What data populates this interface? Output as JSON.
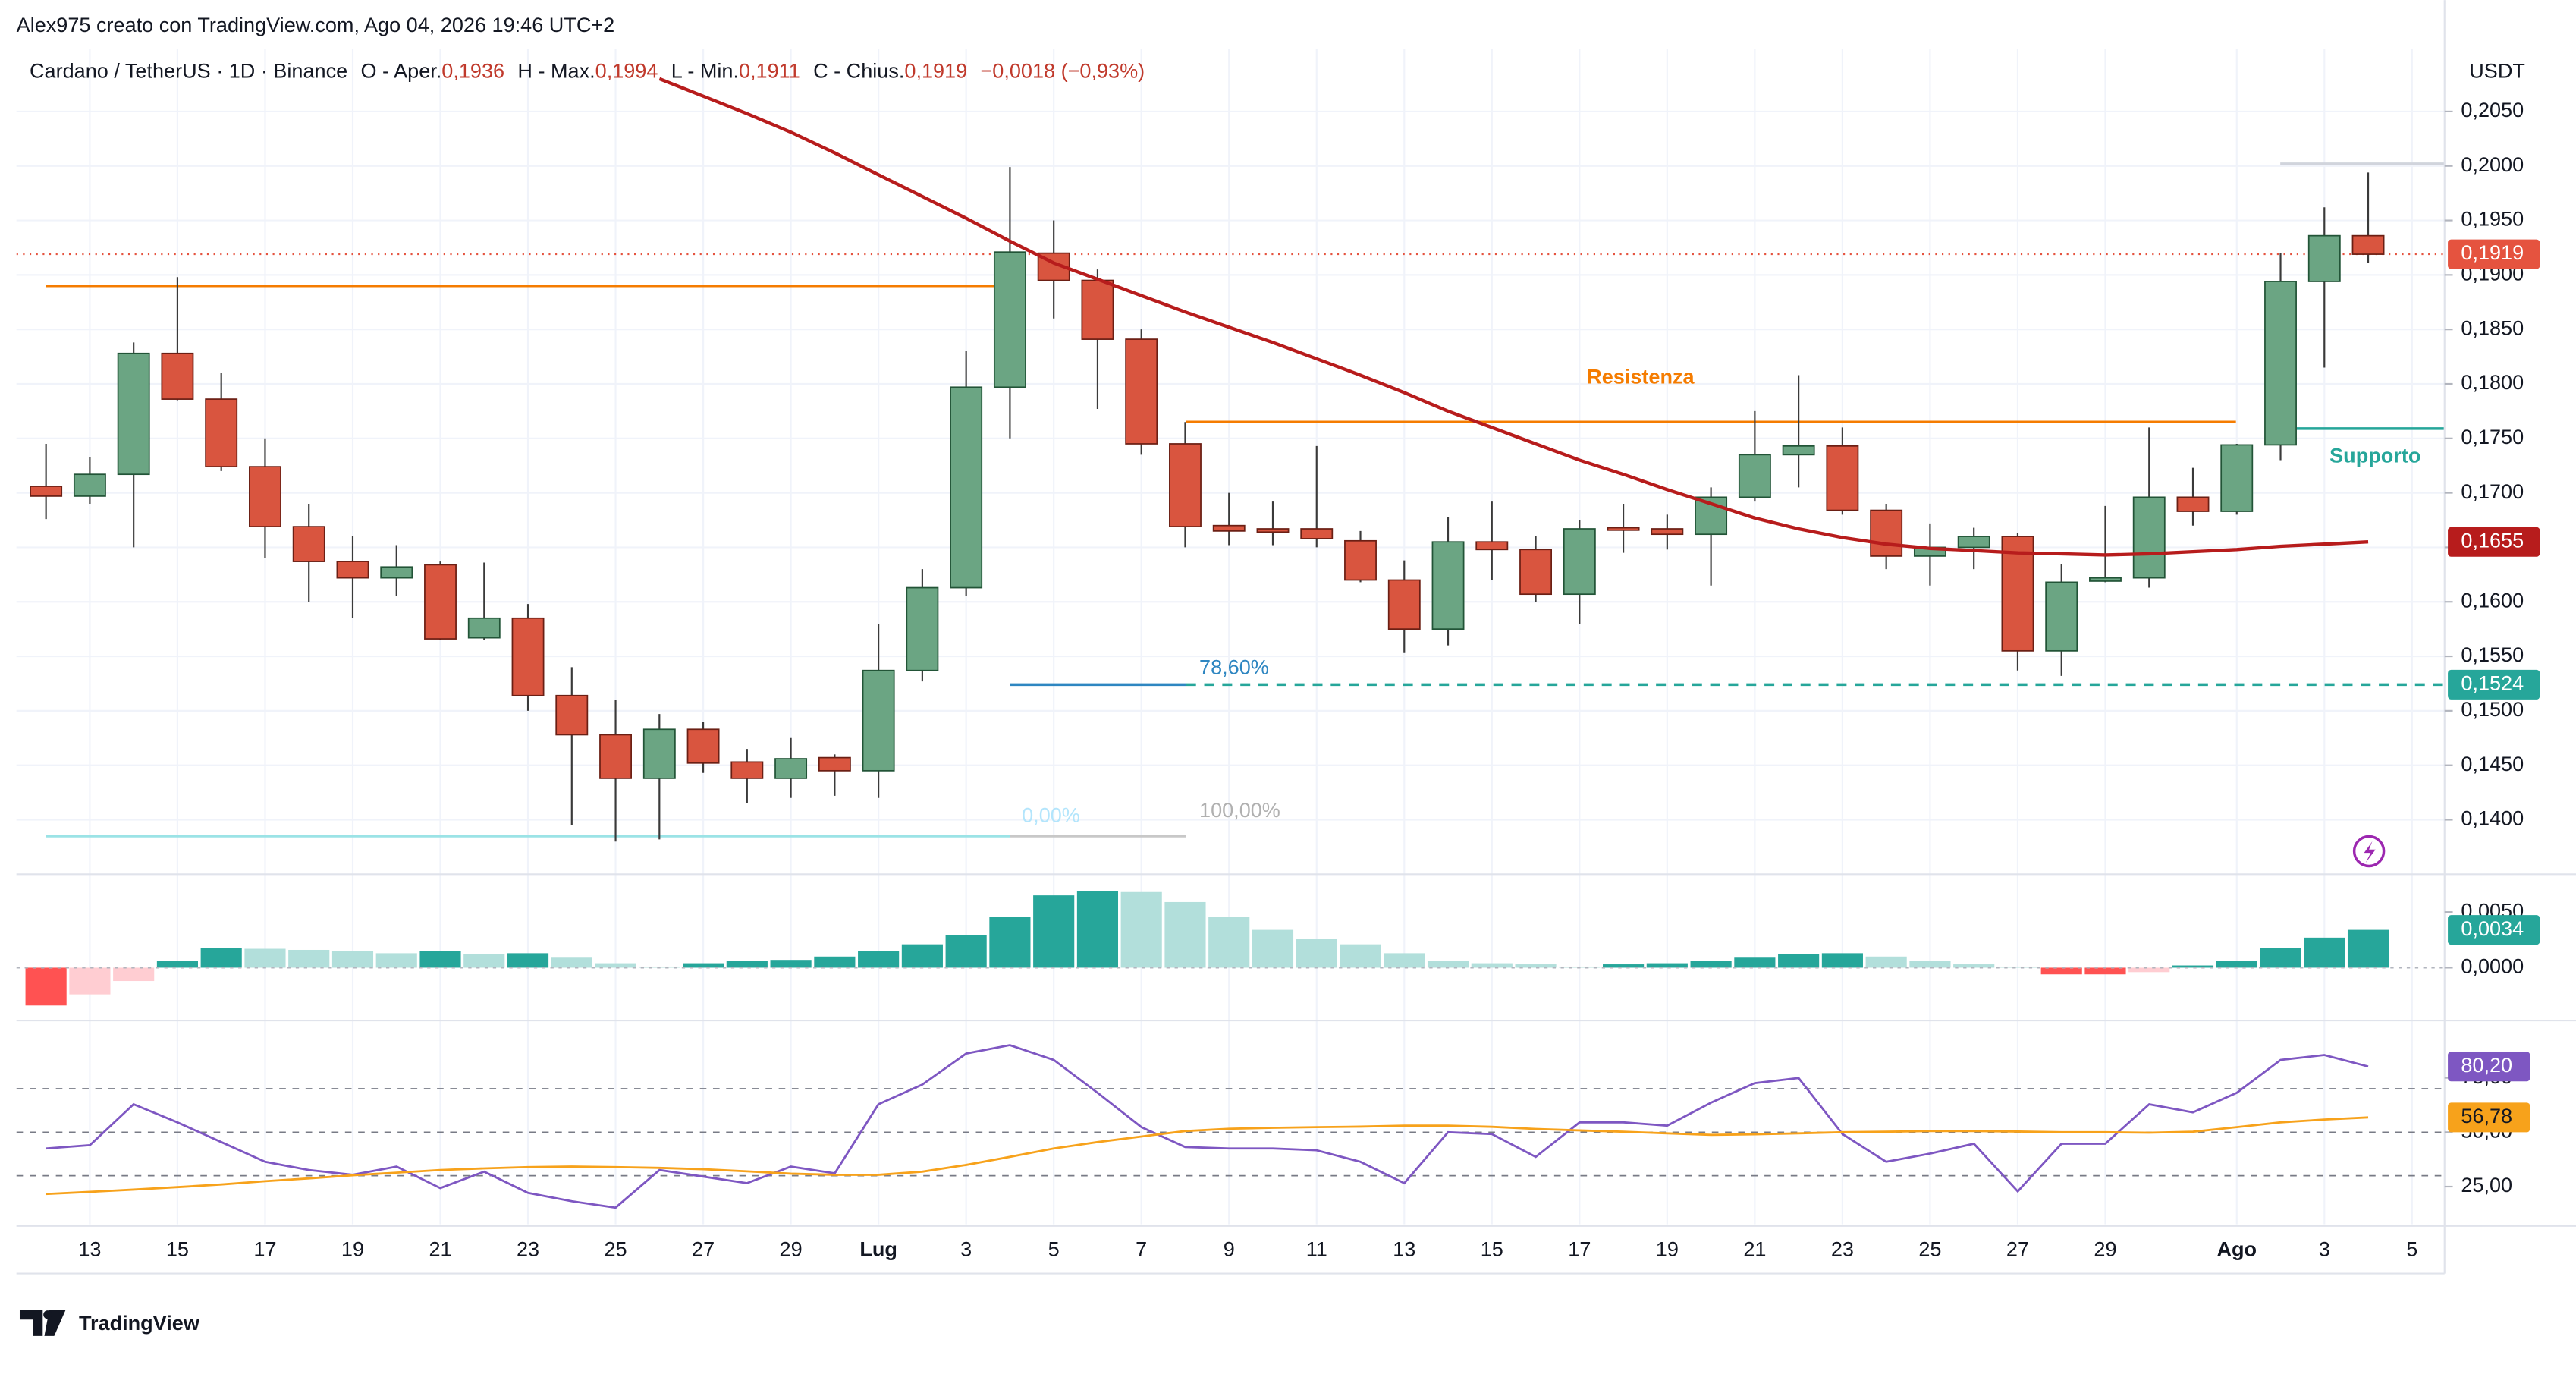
{
  "header": {
    "credit": "Alex975 creato con TradingView.com, Ago 04, 2026 19:46 UTC+2",
    "symbol": "Cardano / TetherUS · 1D · Binance",
    "ohlc": [
      {
        "key": "O - Aper.",
        "value": "0,1936"
      },
      {
        "key": "H - Max.",
        "value": "0,1994"
      },
      {
        "key": "L - Min.",
        "value": "0,1911"
      },
      {
        "key": "C - Chius.",
        "value": "0,1919"
      }
    ],
    "change": "−0,0018 (−0,93%)",
    "currency": "USDT",
    "logo": "TradingView"
  },
  "chart_data": [
    {
      "type": "candlestick",
      "up_color": "#6ba583",
      "down_color": "#d9553f",
      "up_border": "#225437",
      "down_border": "#6b1f14",
      "wick_color": "#3a3a3a",
      "grid": true,
      "categories": [
        null,
        "13",
        null,
        "15",
        null,
        "17",
        null,
        "19",
        null,
        "21",
        null,
        "23",
        null,
        "25",
        null,
        "27",
        null,
        "29",
        null,
        "Lug",
        null,
        "3",
        null,
        "5",
        null,
        "7",
        null,
        "9",
        null,
        "11",
        null,
        "13",
        null,
        "15",
        null,
        "17",
        null,
        "19",
        null,
        "21",
        null,
        "23",
        null,
        "25",
        null,
        "27",
        null,
        "29",
        null,
        null,
        "Ago",
        null,
        "3",
        null,
        "5"
      ],
      "open": [
        0.1706,
        0.1697,
        0.1717,
        0.1828,
        0.1786,
        0.1724,
        0.1669,
        0.1637,
        0.1622,
        0.1634,
        0.1567,
        0.1585,
        0.1514,
        0.1478,
        0.1438,
        0.1483,
        0.1453,
        0.1438,
        0.1457,
        0.1445,
        0.1537,
        0.1613,
        0.1797,
        0.192,
        0.1895,
        0.1841,
        0.1745,
        0.167,
        0.1667,
        0.1667,
        0.1656,
        0.162,
        0.1575,
        0.1655,
        0.1648,
        0.1607,
        0.1668,
        0.1667,
        0.1662,
        0.1696,
        0.1735,
        0.1743,
        0.1684,
        0.1642,
        0.165,
        0.166,
        0.1555,
        0.1619,
        0.1622,
        0.1696,
        0.1683,
        0.1744,
        0.1894,
        0.1936,
        null
      ],
      "high": [
        0.1745,
        0.1733,
        0.1838,
        0.1898,
        0.181,
        0.175,
        0.169,
        0.166,
        0.1652,
        0.1637,
        0.1636,
        0.1598,
        0.154,
        0.151,
        0.1497,
        0.149,
        0.1465,
        0.1475,
        0.146,
        0.158,
        0.163,
        0.183,
        0.1999,
        0.195,
        0.1905,
        0.185,
        0.1765,
        0.17,
        0.1692,
        0.1743,
        0.1665,
        0.1638,
        0.1678,
        0.1692,
        0.166,
        0.1675,
        0.169,
        0.168,
        0.1705,
        0.1775,
        0.1808,
        0.176,
        0.169,
        0.1672,
        0.1668,
        0.1663,
        0.1635,
        0.1688,
        0.176,
        0.1723,
        0.1745,
        0.192,
        0.1962,
        0.1994,
        null
      ],
      "low": [
        0.1676,
        0.169,
        0.165,
        0.1785,
        0.172,
        0.164,
        0.16,
        0.1585,
        0.1605,
        0.1565,
        0.1565,
        0.15,
        0.1395,
        0.138,
        0.1382,
        0.1443,
        0.1415,
        0.142,
        0.1422,
        0.142,
        0.1527,
        0.1605,
        0.175,
        0.186,
        0.1777,
        0.1735,
        0.165,
        0.1652,
        0.1652,
        0.165,
        0.1618,
        0.1553,
        0.156,
        0.162,
        0.16,
        0.158,
        0.1645,
        0.1648,
        0.1615,
        0.1692,
        0.1705,
        0.168,
        0.163,
        0.1615,
        0.163,
        0.1537,
        0.1532,
        0.1618,
        0.1613,
        0.167,
        0.168,
        0.173,
        0.1815,
        0.1911,
        null
      ],
      "close": [
        0.1697,
        0.1717,
        0.1828,
        0.1786,
        0.1724,
        0.1669,
        0.1637,
        0.1622,
        0.1632,
        0.1566,
        0.1585,
        0.1514,
        0.1478,
        0.1438,
        0.1483,
        0.1452,
        0.1438,
        0.1456,
        0.1445,
        0.1537,
        0.1613,
        0.1797,
        0.1921,
        0.1895,
        0.1841,
        0.1745,
        0.1669,
        0.1665,
        0.1664,
        0.1658,
        0.162,
        0.1575,
        0.1655,
        0.1648,
        0.1607,
        0.1667,
        0.1666,
        0.1662,
        0.1696,
        0.1735,
        0.1743,
        0.1684,
        0.1642,
        0.165,
        0.166,
        0.1555,
        0.1618,
        0.1622,
        0.1696,
        0.1683,
        0.1744,
        0.1894,
        0.1936,
        0.1919,
        null
      ],
      "ma": {
        "color": "#b71c1c",
        "values": [
          null,
          null,
          null,
          null,
          null,
          null,
          null,
          null,
          null,
          null,
          null,
          null,
          null,
          null,
          0.208,
          0.2064,
          0.2048,
          0.2031,
          0.2012,
          0.1992,
          0.1972,
          0.1952,
          0.1931,
          0.1911,
          0.1896,
          0.1881,
          0.1866,
          0.1852,
          0.1838,
          0.1823,
          0.1808,
          0.1792,
          0.1775,
          0.176,
          0.1745,
          0.173,
          0.1717,
          0.1703,
          0.169,
          0.1677,
          0.1667,
          0.1659,
          0.1653,
          0.1649,
          0.1647,
          0.1645,
          0.1644,
          0.1643,
          0.1644,
          0.1646,
          0.1648,
          0.1651,
          0.1653,
          0.1655,
          null
        ]
      },
      "ylim": [
        0.135,
        0.2107
      ],
      "yticks": [
        {
          "value": 0.14,
          "label": "0,1400"
        },
        {
          "value": 0.145,
          "label": "0,1450"
        },
        {
          "value": 0.15,
          "label": "0,1500"
        },
        {
          "value": 0.155,
          "label": "0,1550"
        },
        {
          "value": 0.16,
          "label": "0,1600"
        },
        {
          "value": 0.165,
          "label": "0,1650"
        },
        {
          "value": 0.17,
          "label": "0,1700"
        },
        {
          "value": 0.175,
          "label": "0,1750"
        },
        {
          "value": 0.18,
          "label": "0,1800"
        },
        {
          "value": 0.185,
          "label": "0,1850"
        },
        {
          "value": 0.19,
          "label": "0,1900"
        },
        {
          "value": 0.195,
          "label": "0,1950"
        },
        {
          "value": 0.2,
          "label": "0,2000"
        },
        {
          "value": 0.205,
          "label": "0,2050"
        }
      ],
      "price_tags": [
        {
          "value": 0.1919,
          "label": "0,1919",
          "color": "#e5533f"
        },
        {
          "value": 0.1655,
          "label": "0,1655",
          "color": "#b71c1c"
        },
        {
          "value": 0.1524,
          "label": "0,1524",
          "color": "#26a69a"
        }
      ],
      "lines": [
        {
          "value": 0.189,
          "color": "#f57c00"
        },
        {
          "value": 0.1765,
          "color": "#f57c00"
        },
        {
          "value": 0.1524,
          "color": "#2e86c1"
        },
        {
          "value": 0.1524,
          "color": "#26a69a"
        },
        {
          "value": 0.1385,
          "color": "#9be3e6"
        },
        {
          "value": 0.1385,
          "color": "#c8c8c8"
        },
        {
          "value": 0.1759,
          "color": "#26a69a"
        },
        {
          "value": 0.2002,
          "color": "#d1d4dc"
        }
      ],
      "annotations": [
        {
          "text": "Resistenza",
          "color": "#f57c00"
        },
        {
          "text": "Supporto",
          "color": "#26a69a"
        },
        {
          "text": "78,60%",
          "color": "#2e86c1"
        },
        {
          "text": "0,00%",
          "color": "#b3e5fc"
        },
        {
          "text": "100,00%",
          "color": "#b0b0b0"
        }
      ]
    },
    {
      "type": "bar",
      "colors": {
        "up_rising": "#26a69a",
        "up_falling": "#b2dfdb",
        "down_falling": "#ff5252",
        "down_rising": "#ffcdd2"
      },
      "values": [
        -0.0034,
        -0.0024,
        -0.0012,
        0.0006,
        0.0018,
        0.0017,
        0.0016,
        0.0015,
        0.0013,
        0.0015,
        0.0012,
        0.0013,
        0.0009,
        0.0004,
        0.0001,
        0.0004,
        0.0006,
        0.0007,
        0.001,
        0.0015,
        0.0021,
        0.0029,
        0.0046,
        0.0065,
        0.0069,
        0.0068,
        0.0059,
        0.0046,
        0.0034,
        0.0026,
        0.0021,
        0.0013,
        0.0006,
        0.0004,
        0.0003,
        0.0001,
        0.0003,
        0.0004,
        0.0006,
        0.0009,
        0.0012,
        0.0013,
        0.001,
        0.0006,
        0.0003,
        0.0001,
        -0.0006,
        -0.0006,
        -0.0004,
        0.0002,
        0.0006,
        0.0018,
        0.0027,
        0.0034,
        null
      ],
      "ylim": [
        -0.0046,
        0.0084
      ],
      "yticks": [
        {
          "value": 0,
          "label": "0,0000"
        },
        {
          "value": 0.005,
          "label": "0,0050"
        }
      ],
      "tag": {
        "value": 0.0034,
        "label": "0,0034",
        "color": "#26a69a"
      }
    },
    {
      "type": "line",
      "series": [
        {
          "color": "#7e57c2",
          "values": [
            42.5,
            44,
            62.8,
            54.5,
            45.5,
            36.4,
            32.6,
            30.4,
            34.2,
            24.3,
            31.9,
            22.1,
            18.3,
            15.3,
            32.6,
            29.6,
            26.6,
            34.2,
            31.1,
            62.8,
            71.9,
            86.2,
            90,
            83.2,
            68.1,
            52.3,
            43.2,
            42.5,
            42.5,
            41.7,
            36.4,
            26.6,
            50,
            49.2,
            38.7,
            54.5,
            54.5,
            53,
            63.6,
            72.6,
            74.9,
            49.2,
            36.4,
            40.2,
            44.7,
            22.8,
            44.7,
            44.7,
            62.8,
            59.1,
            68.1,
            83.2,
            85.5,
            80.2,
            null
          ]
        },
        {
          "color": "#f7a21b",
          "values": [
            21.6,
            22.6,
            23.6,
            24.8,
            26,
            27.5,
            28.8,
            30.2,
            31.4,
            32.6,
            33.4,
            34,
            34.2,
            34,
            33.6,
            33,
            32,
            31,
            30.4,
            30.4,
            31.9,
            35,
            38.7,
            42.5,
            45.5,
            48,
            50.5,
            51.6,
            52,
            52.3,
            52.6,
            53,
            53,
            52.5,
            51.5,
            50.8,
            50.2,
            49.5,
            48.8,
            49,
            49.5,
            50,
            50.2,
            50.5,
            50.5,
            50.3,
            50,
            50,
            49.8,
            50.2,
            52.3,
            54.5,
            55.8,
            56.78,
            null
          ]
        }
      ],
      "bands": [
        70,
        50,
        30
      ],
      "ylim": [
        7.7,
        100.6
      ],
      "yticks": [
        {
          "value": 25,
          "label": "25,00"
        },
        {
          "value": 50,
          "label": "50,00"
        },
        {
          "value": 75,
          "label": "75,00"
        }
      ],
      "tags": [
        {
          "value": 80.2,
          "label": "80,20",
          "color": "#7e57c2"
        },
        {
          "value": 56.78,
          "label": "56,78",
          "color": "#f7a21b"
        }
      ]
    }
  ]
}
